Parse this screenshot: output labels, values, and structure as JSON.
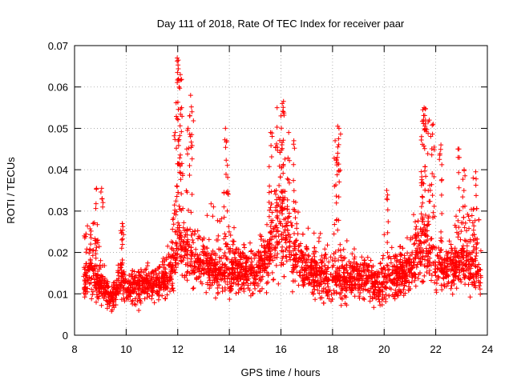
{
  "chart_data": {
    "type": "scatter",
    "title": "Day 111 of 2018, Rate Of TEC Index for receiver paar",
    "xlabel": "GPS time / hours",
    "ylabel": "ROTI / TECUs",
    "xlim": [
      8,
      24
    ],
    "ylim": [
      0,
      0.07
    ],
    "xticks": [
      8,
      10,
      12,
      14,
      16,
      18,
      20,
      22,
      24
    ],
    "xtick_labels": [
      "8",
      "10",
      "12",
      "14",
      "16",
      "18",
      "20",
      "22",
      "24"
    ],
    "yticks": [
      0,
      0.01,
      0.02,
      0.03,
      0.04,
      0.05,
      0.06,
      0.07
    ],
    "ytick_labels": [
      "0",
      "0.01",
      "0.02",
      "0.03",
      "0.04",
      "0.05",
      "0.06",
      "0.07"
    ],
    "grid": true,
    "marker": "+",
    "color": "#ff0000",
    "data_range_x": [
      8.35,
      23.75
    ],
    "envelope": [
      [
        8.4,
        0.013,
        0.005,
        0.028
      ],
      [
        8.6,
        0.016,
        0.006,
        0.033
      ],
      [
        8.8,
        0.013,
        0.005,
        0.03
      ],
      [
        9.0,
        0.011,
        0.004,
        0.02
      ],
      [
        9.2,
        0.01,
        0.004,
        0.015
      ],
      [
        9.4,
        0.009,
        0.004,
        0.012
      ],
      [
        9.6,
        0.01,
        0.004,
        0.014
      ],
      [
        9.8,
        0.014,
        0.005,
        0.024
      ],
      [
        10.0,
        0.011,
        0.004,
        0.017
      ],
      [
        10.2,
        0.011,
        0.004,
        0.016
      ],
      [
        10.4,
        0.011,
        0.004,
        0.016
      ],
      [
        10.6,
        0.012,
        0.004,
        0.017
      ],
      [
        10.8,
        0.012,
        0.004,
        0.017
      ],
      [
        11.0,
        0.011,
        0.004,
        0.016
      ],
      [
        11.2,
        0.012,
        0.004,
        0.018
      ],
      [
        11.4,
        0.012,
        0.004,
        0.018
      ],
      [
        11.6,
        0.013,
        0.005,
        0.022
      ],
      [
        11.8,
        0.016,
        0.006,
        0.03
      ],
      [
        12.0,
        0.022,
        0.007,
        0.05
      ],
      [
        12.2,
        0.021,
        0.007,
        0.04
      ],
      [
        12.4,
        0.019,
        0.006,
        0.035
      ],
      [
        12.6,
        0.018,
        0.006,
        0.03
      ],
      [
        12.8,
        0.017,
        0.006,
        0.028
      ],
      [
        13.0,
        0.017,
        0.006,
        0.027
      ],
      [
        13.2,
        0.016,
        0.006,
        0.028
      ],
      [
        13.4,
        0.016,
        0.006,
        0.032
      ],
      [
        13.6,
        0.014,
        0.005,
        0.03
      ],
      [
        13.8,
        0.015,
        0.005,
        0.035
      ],
      [
        14.0,
        0.014,
        0.005,
        0.03
      ],
      [
        14.2,
        0.015,
        0.005,
        0.025
      ],
      [
        14.4,
        0.015,
        0.005,
        0.023
      ],
      [
        14.6,
        0.014,
        0.005,
        0.024
      ],
      [
        14.8,
        0.015,
        0.005,
        0.024
      ],
      [
        15.0,
        0.015,
        0.005,
        0.025
      ],
      [
        15.2,
        0.016,
        0.006,
        0.027
      ],
      [
        15.4,
        0.017,
        0.006,
        0.03
      ],
      [
        15.6,
        0.02,
        0.006,
        0.036
      ],
      [
        15.8,
        0.022,
        0.007,
        0.04
      ],
      [
        16.0,
        0.025,
        0.008,
        0.045
      ],
      [
        16.2,
        0.023,
        0.007,
        0.04
      ],
      [
        16.4,
        0.021,
        0.007,
        0.036
      ],
      [
        16.6,
        0.018,
        0.006,
        0.032
      ],
      [
        16.8,
        0.016,
        0.006,
        0.027
      ],
      [
        17.0,
        0.015,
        0.005,
        0.025
      ],
      [
        17.2,
        0.014,
        0.005,
        0.024
      ],
      [
        17.4,
        0.014,
        0.005,
        0.024
      ],
      [
        17.6,
        0.014,
        0.005,
        0.024
      ],
      [
        17.8,
        0.013,
        0.005,
        0.022
      ],
      [
        18.0,
        0.013,
        0.005,
        0.023
      ],
      [
        18.2,
        0.013,
        0.005,
        0.024
      ],
      [
        18.4,
        0.013,
        0.005,
        0.023
      ],
      [
        18.6,
        0.013,
        0.005,
        0.022
      ],
      [
        18.8,
        0.013,
        0.005,
        0.022
      ],
      [
        19.0,
        0.013,
        0.005,
        0.023
      ],
      [
        19.2,
        0.013,
        0.005,
        0.023
      ],
      [
        19.4,
        0.013,
        0.005,
        0.022
      ],
      [
        19.6,
        0.012,
        0.004,
        0.022
      ],
      [
        19.8,
        0.012,
        0.004,
        0.021
      ],
      [
        20.0,
        0.012,
        0.004,
        0.023
      ],
      [
        20.2,
        0.013,
        0.005,
        0.026
      ],
      [
        20.4,
        0.013,
        0.005,
        0.024
      ],
      [
        20.6,
        0.014,
        0.005,
        0.022
      ],
      [
        20.8,
        0.014,
        0.005,
        0.022
      ],
      [
        21.0,
        0.015,
        0.005,
        0.025
      ],
      [
        21.2,
        0.017,
        0.006,
        0.03
      ],
      [
        21.4,
        0.02,
        0.006,
        0.038
      ],
      [
        21.6,
        0.022,
        0.007,
        0.042
      ],
      [
        21.8,
        0.02,
        0.006,
        0.036
      ],
      [
        22.0,
        0.017,
        0.006,
        0.028
      ],
      [
        22.2,
        0.015,
        0.005,
        0.024
      ],
      [
        22.4,
        0.015,
        0.005,
        0.025
      ],
      [
        22.6,
        0.015,
        0.005,
        0.025
      ],
      [
        22.8,
        0.016,
        0.006,
        0.03
      ],
      [
        23.0,
        0.017,
        0.006,
        0.033
      ],
      [
        23.2,
        0.016,
        0.006,
        0.03
      ],
      [
        23.4,
        0.016,
        0.006,
        0.03
      ],
      [
        23.6,
        0.015,
        0.005,
        0.03
      ],
      [
        23.75,
        0.014,
        0.005,
        0.027
      ]
    ],
    "peaks": [
      [
        8.85,
        0.0355
      ],
      [
        9.05,
        0.0355
      ],
      [
        9.85,
        0.027
      ],
      [
        11.98,
        0.067
      ],
      [
        12.02,
        0.0665
      ],
      [
        12.1,
        0.063
      ],
      [
        12.05,
        0.06
      ],
      [
        11.9,
        0.049
      ],
      [
        12.15,
        0.055
      ],
      [
        12.5,
        0.058
      ],
      [
        12.55,
        0.054
      ],
      [
        12.4,
        0.05
      ],
      [
        13.85,
        0.05
      ],
      [
        13.9,
        0.047
      ],
      [
        15.6,
        0.049
      ],
      [
        15.85,
        0.055
      ],
      [
        16.05,
        0.056
      ],
      [
        16.1,
        0.0565
      ],
      [
        16.0,
        0.053
      ],
      [
        16.3,
        0.049
      ],
      [
        16.5,
        0.047
      ],
      [
        18.2,
        0.0505
      ],
      [
        18.25,
        0.05
      ],
      [
        18.1,
        0.047
      ],
      [
        18.2,
        0.044
      ],
      [
        20.1,
        0.035
      ],
      [
        21.5,
        0.0545
      ],
      [
        21.55,
        0.055
      ],
      [
        21.6,
        0.052
      ],
      [
        21.75,
        0.052
      ],
      [
        21.9,
        0.051
      ],
      [
        21.45,
        0.048
      ],
      [
        22.2,
        0.046
      ],
      [
        22.9,
        0.045
      ],
      [
        23.1,
        0.04
      ],
      [
        23.55,
        0.0395
      ],
      [
        23.45,
        0.038
      ]
    ]
  }
}
